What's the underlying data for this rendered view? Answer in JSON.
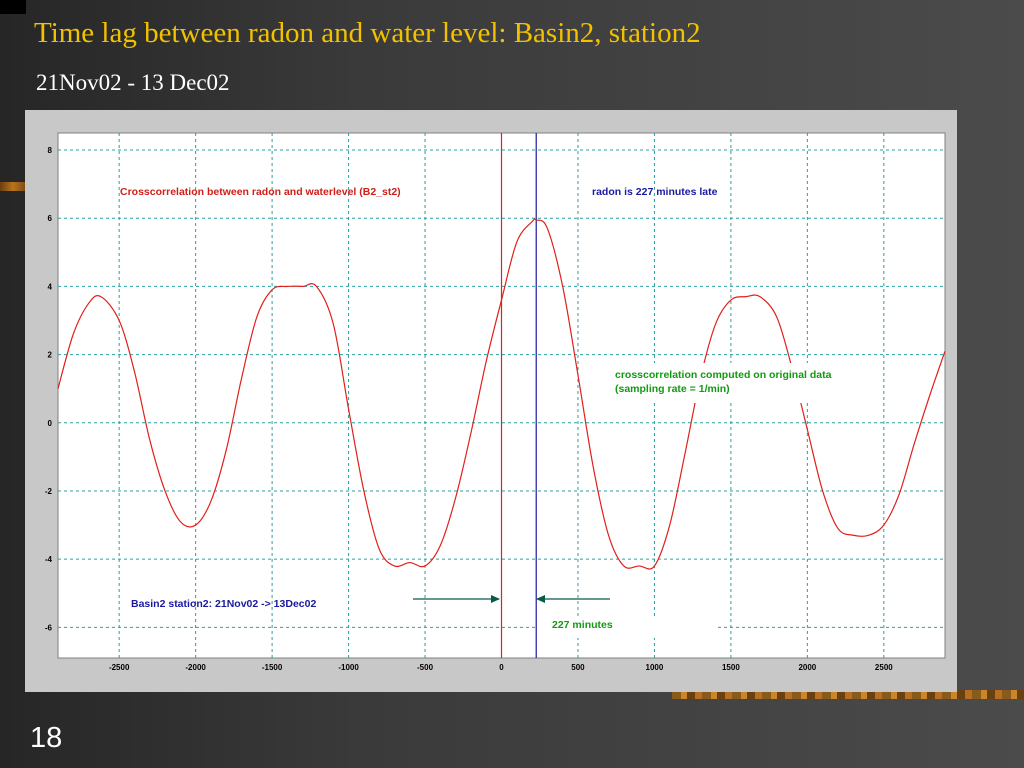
{
  "slide": {
    "title": "Time lag between radon and water level: Basin2, station2",
    "subtitle": "21Nov02 - 13 Dec02",
    "number": "18"
  },
  "colors": {
    "title": "#f2c200",
    "curve": "#e0201c",
    "zero_line": "#e0201c",
    "peak_line": "#1a1a9a",
    "grid": "#2aa0a0",
    "arrow": "#0a5a4a"
  },
  "chart_data": {
    "type": "line",
    "title": "",
    "xlabel": "",
    "ylabel": "",
    "xlim": [
      -2900,
      2900
    ],
    "ylim": [
      -6.9,
      8.5
    ],
    "x_ticks": [
      -2500,
      -2000,
      -1500,
      -1000,
      -500,
      0,
      500,
      1000,
      1500,
      2000,
      2500
    ],
    "y_ticks": [
      8,
      6,
      4,
      2,
      0,
      -2,
      -4,
      -6
    ],
    "grid": true,
    "series": [
      {
        "x": [
          -2900,
          -2800,
          -2700,
          -2620,
          -2500,
          -2400,
          -2300,
          -2200,
          -2100,
          -2000,
          -1900,
          -1800,
          -1700,
          -1600,
          -1500,
          -1400,
          -1300,
          -1210,
          -1100,
          -1000,
          -900,
          -800,
          -700,
          -600,
          -500,
          -400,
          -300,
          -200,
          -100,
          0,
          100,
          200,
          227,
          300,
          400,
          500,
          600,
          700,
          800,
          900,
          1000,
          1100,
          1200,
          1300,
          1400,
          1500,
          1600,
          1690,
          1800,
          1900,
          2000,
          2100,
          2200,
          2300,
          2400,
          2500,
          2600,
          2700,
          2800,
          2900
        ],
        "y": [
          1.0,
          2.6,
          3.5,
          3.7,
          3.0,
          1.5,
          -0.5,
          -2.0,
          -2.9,
          -3.0,
          -2.3,
          -0.8,
          1.3,
          3.1,
          3.9,
          4.0,
          4.0,
          4.0,
          2.9,
          0.4,
          -2.0,
          -3.7,
          -4.2,
          -4.1,
          -4.2,
          -3.6,
          -2.2,
          -0.3,
          1.8,
          3.6,
          5.3,
          5.9,
          5.95,
          5.7,
          4.0,
          1.4,
          -1.3,
          -3.3,
          -4.2,
          -4.2,
          -4.2,
          -3.0,
          -0.9,
          1.3,
          2.9,
          3.6,
          3.7,
          3.7,
          3.1,
          1.6,
          -0.2,
          -2.0,
          -3.1,
          -3.3,
          -3.3,
          -3.0,
          -2.1,
          -0.6,
          0.8,
          2.1
        ]
      }
    ],
    "vertical_lines": [
      {
        "x": 0,
        "color": "#e0201c"
      },
      {
        "x": 227,
        "color": "#1a1a9a"
      }
    ],
    "annotations": {
      "crosscorr_label": "Crosscorrelation between radon and waterlevel (B2_st2)",
      "late_label": "radon is 227 minutes late",
      "computed_line1": "crosscorrelation computed on original data",
      "computed_line2": "(sampling rate = 1/min)",
      "station_label": "Basin2 station2: 21Nov02 -> 13Dec02",
      "minutes_label": "227 minutes"
    }
  }
}
